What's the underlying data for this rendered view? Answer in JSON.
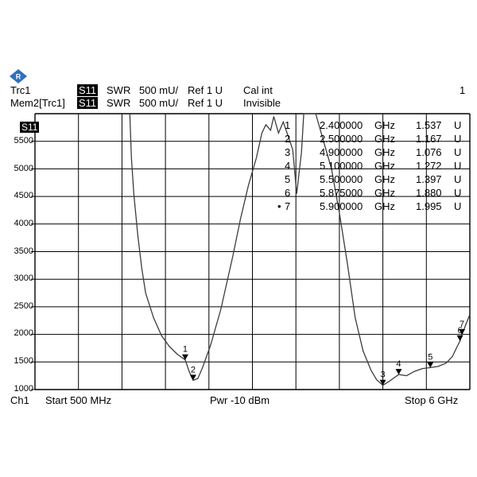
{
  "header": {
    "trace1": {
      "name": "Trc1",
      "param": "S11",
      "format": "SWR",
      "scale": "500 mU/",
      "ref": "Ref 1 U",
      "status": "Cal int",
      "channel": "1"
    },
    "trace2": {
      "name": "Mem2[Trc1]",
      "param": "S11",
      "format": "SWR",
      "scale": "500 mU/",
      "ref": "Ref 1 U",
      "status": "Invisible"
    }
  },
  "plot": {
    "trace_label": "S11",
    "y_ticks": [
      "5500",
      "5000",
      "4500",
      "4000",
      "3500",
      "3000",
      "2500",
      "2000",
      "1500",
      "1000"
    ]
  },
  "markers": [
    {
      "id": "1",
      "freq": "2.400000",
      "unit": "GHz",
      "swr": "1.537",
      "swr_unit": "U"
    },
    {
      "id": "2",
      "freq": "2.500000",
      "unit": "GHz",
      "swr": "1.167",
      "swr_unit": "U"
    },
    {
      "id": "3",
      "freq": "4.900000",
      "unit": "GHz",
      "swr": "1.076",
      "swr_unit": "U"
    },
    {
      "id": "4",
      "freq": "5.100000",
      "unit": "GHz",
      "swr": "1.272",
      "swr_unit": "U"
    },
    {
      "id": "5",
      "freq": "5.500000",
      "unit": "GHz",
      "swr": "1.397",
      "swr_unit": "U"
    },
    {
      "id": "6",
      "freq": "5.875000",
      "unit": "GHz",
      "swr": "1.880",
      "swr_unit": "U"
    },
    {
      "id": "7",
      "freq": "5.900000",
      "unit": "GHz",
      "swr": "1.995",
      "swr_unit": "U",
      "active": "•"
    }
  ],
  "footer": {
    "channel": "Ch1",
    "start": "Start  500 MHz",
    "power": "Pwr  -10 dBm",
    "stop": "Stop  6 GHz"
  },
  "colors": {
    "background": "#ffffff",
    "trace": "#3c3c3c",
    "grid": "#000000",
    "logo": "#2f6fbe"
  },
  "icons": [
    "rs-logo-icon",
    "marker-triangle-icon"
  ],
  "chart_data": {
    "type": "line",
    "x": [
      "0.5",
      "1.0",
      "1.5",
      "2.0",
      "2.5",
      "3.0",
      "3.5",
      "4.0",
      "4.5",
      "5.0",
      "5.5",
      "6.0"
    ],
    "x_unit": "GHz",
    "xlim": [
      0.5,
      6.0
    ],
    "ylim": [
      1000,
      6000
    ],
    "grid": true,
    "series": [
      {
        "points": [
          [
            1.7,
            6000
          ],
          [
            1.72,
            5200
          ],
          [
            1.75,
            4550
          ],
          [
            1.8,
            3800
          ],
          [
            1.85,
            3200
          ],
          [
            1.9,
            2750
          ],
          [
            2.0,
            2300
          ],
          [
            2.1,
            1980
          ],
          [
            2.2,
            1780
          ],
          [
            2.3,
            1640
          ],
          [
            2.4,
            1537
          ],
          [
            2.45,
            1330
          ],
          [
            2.5,
            1167
          ],
          [
            2.56,
            1200
          ],
          [
            2.62,
            1400
          ],
          [
            2.72,
            1800
          ],
          [
            2.85,
            2450
          ],
          [
            3.0,
            3400
          ],
          [
            3.1,
            4100
          ],
          [
            3.2,
            4700
          ],
          [
            3.3,
            5200
          ],
          [
            3.37,
            5650
          ],
          [
            3.42,
            5800
          ],
          [
            3.48,
            5700
          ],
          [
            3.52,
            5950
          ],
          [
            3.58,
            5650
          ],
          [
            3.64,
            5850
          ],
          [
            3.7,
            5600
          ],
          [
            3.76,
            5350
          ],
          [
            3.81,
            4550
          ],
          [
            3.87,
            5300
          ],
          [
            3.9,
            6000
          ],
          [
            4.05,
            6000
          ],
          [
            4.15,
            5500
          ],
          [
            4.25,
            5000
          ],
          [
            4.35,
            4200
          ],
          [
            4.45,
            3300
          ],
          [
            4.55,
            2300
          ],
          [
            4.65,
            1700
          ],
          [
            4.75,
            1350
          ],
          [
            4.82,
            1180
          ],
          [
            4.9,
            1076
          ],
          [
            4.98,
            1150
          ],
          [
            5.1,
            1272
          ],
          [
            5.2,
            1250
          ],
          [
            5.3,
            1330
          ],
          [
            5.4,
            1380
          ],
          [
            5.5,
            1397
          ],
          [
            5.6,
            1420
          ],
          [
            5.7,
            1480
          ],
          [
            5.78,
            1600
          ],
          [
            5.83,
            1750
          ],
          [
            5.875,
            1880
          ],
          [
            5.9,
            1995
          ],
          [
            5.95,
            2180
          ],
          [
            6.0,
            2360
          ]
        ]
      }
    ],
    "markers": [
      {
        "id": "1",
        "x": 2.4,
        "y": 1537
      },
      {
        "id": "2",
        "x": 2.5,
        "y": 1167
      },
      {
        "id": "3",
        "x": 4.9,
        "y": 1076
      },
      {
        "id": "4",
        "x": 5.1,
        "y": 1272
      },
      {
        "id": "5",
        "x": 5.5,
        "y": 1397
      },
      {
        "id": "6",
        "x": 5.875,
        "y": 1880
      },
      {
        "id": "7",
        "x": 5.9,
        "y": 1995
      }
    ]
  }
}
